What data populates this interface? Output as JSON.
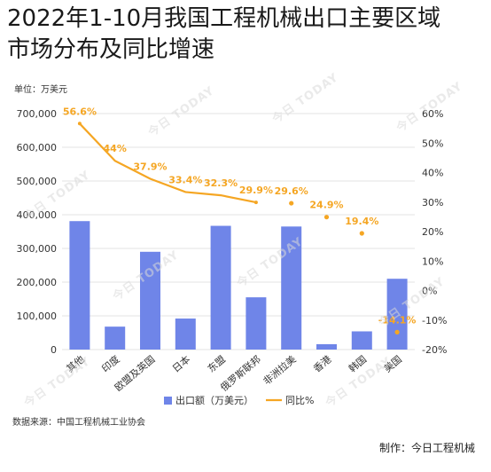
{
  "title_line1": "2022年1-10月我国工程机械出口主要区域",
  "title_line2": "市场分布及同比增速",
  "unit_label": "单位：万美元",
  "source_text": "数据来源：中国工程机械工业协会",
  "credit_text": "制作：今日工程机械",
  "watermark_text": "今日 TODAY",
  "colors": {
    "bar": "#6f85e8",
    "line": "#f5a623",
    "grid": "#e3e3e3"
  },
  "chart_data": {
    "type": "bar",
    "categories": [
      "其他",
      "印度",
      "欧盟及英国",
      "日本",
      "东盟",
      "俄罗斯联邦",
      "非洲拉美",
      "香港",
      "韩国",
      "美国"
    ],
    "series": [
      {
        "name": "出口额（万美元）",
        "type": "bar",
        "axis": "left",
        "values": [
          381000,
          68000,
          290000,
          92000,
          367000,
          155000,
          365000,
          16000,
          54000,
          210000
        ]
      },
      {
        "name": "同比%",
        "type": "line",
        "axis": "right",
        "values": [
          56.6,
          44,
          37.9,
          33.4,
          32.3,
          29.9,
          29.6,
          24.9,
          19.4,
          -14.1
        ],
        "labels": [
          "56.6%",
          "44%",
          "37.9%",
          "33.4%",
          "32.3%",
          "29.9%",
          "29.6%",
          "24.9%",
          "19.4%",
          "-14.1%"
        ],
        "connected_until_index": 5
      }
    ],
    "y_left": {
      "ylim": [
        0,
        700000
      ],
      "ticks": [
        "0",
        "100,000",
        "200,000",
        "300,000",
        "400,000",
        "500,000",
        "600,000",
        "700,000"
      ]
    },
    "y_right": {
      "ylim": [
        -20,
        60
      ],
      "ticks": [
        "-20%",
        "-10%",
        "0%",
        "10%",
        "20%",
        "30%",
        "40%",
        "50%",
        "60%"
      ]
    },
    "legend": [
      "出口额（万美元）",
      "同比%"
    ],
    "legend_position": "bottom",
    "grid": true
  }
}
